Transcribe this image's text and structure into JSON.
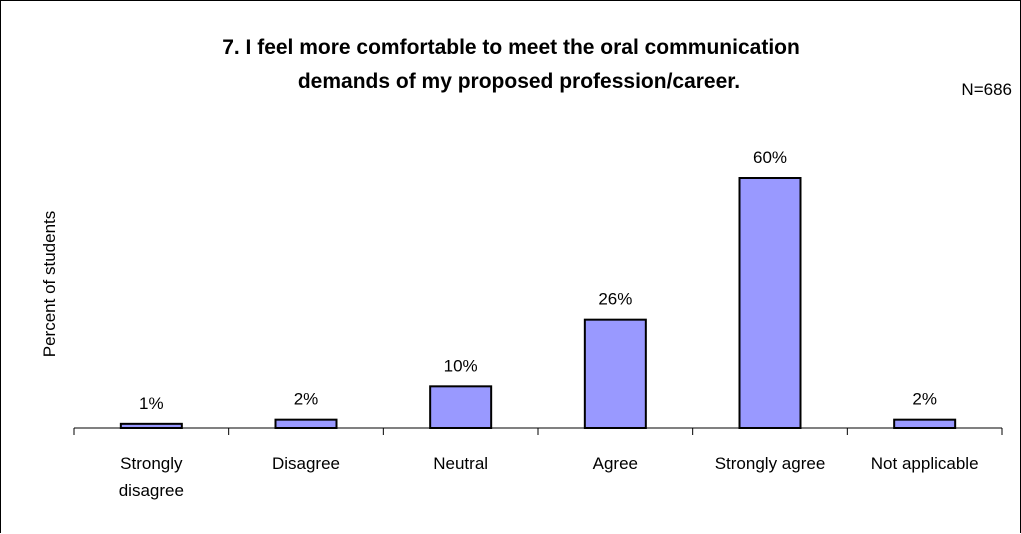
{
  "chart_data": {
    "type": "bar",
    "title_lines": [
      "7. I feel more comfortable to meet the oral communication",
      "demands of my proposed profession/career."
    ],
    "annotation": "N=686",
    "ylabel": "Percent of students",
    "categories": [
      [
        "Strongly",
        "disagree"
      ],
      [
        "Disagree"
      ],
      [
        "Neutral"
      ],
      [
        "Agree"
      ],
      [
        "Strongly agree"
      ],
      [
        "Not applicable"
      ]
    ],
    "values": [
      1,
      2,
      10,
      26,
      60,
      2
    ],
    "value_labels": [
      "1%",
      "2%",
      "10%",
      "26%",
      "60%",
      "2%"
    ],
    "ylim": [
      0,
      60
    ],
    "grid": false,
    "bar_color": "#9999ff"
  }
}
